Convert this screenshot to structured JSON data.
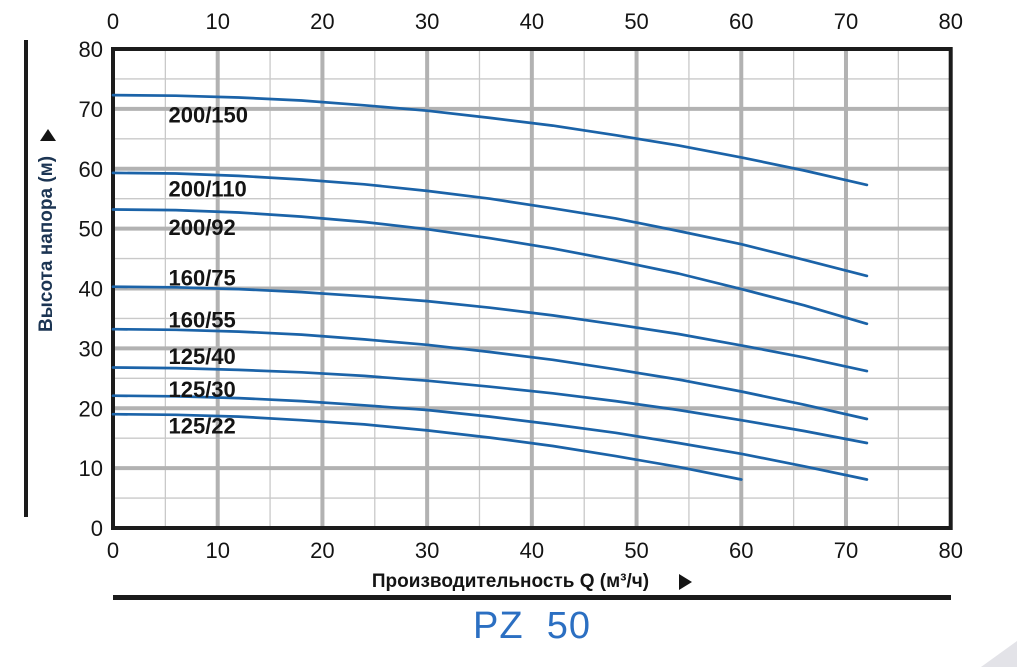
{
  "figure": {
    "y_axis_title": "Высота напора (м)",
    "x_axis_title": "Производительность Q (м³/ч)",
    "model_title": "PZ  50"
  },
  "chart_data": {
    "type": "line",
    "title": "PZ 50",
    "xlabel": "Производительность Q (м³/ч)",
    "ylabel": "Высота напора (м)",
    "xlim": [
      0,
      80
    ],
    "ylim": [
      0,
      80
    ],
    "x_ticks": [
      0,
      10,
      20,
      30,
      40,
      50,
      60,
      70,
      80
    ],
    "y_ticks": [
      0,
      10,
      20,
      30,
      40,
      50,
      60,
      70,
      80
    ],
    "grid": {
      "major_step": 10,
      "minor_step": 5,
      "on": true
    },
    "legend_position": "inline-labels-left",
    "colors": {
      "curve": "#1b63a8",
      "grid_major": "#b2b2b2",
      "grid_minor": "#c9c9c9",
      "axis": "#1b1b1b",
      "text": "#141414",
      "title_blue": "#2b6fc2"
    },
    "series": [
      {
        "name": "200/150",
        "label_x": 5.3,
        "label_y": 69.1,
        "points": [
          [
            0,
            72.3
          ],
          [
            6,
            72.2
          ],
          [
            12,
            71.9
          ],
          [
            18,
            71.4
          ],
          [
            24,
            70.6
          ],
          [
            30,
            69.7
          ],
          [
            36,
            68.5
          ],
          [
            42,
            67.2
          ],
          [
            48,
            65.6
          ],
          [
            54,
            63.9
          ],
          [
            60,
            61.9
          ],
          [
            66,
            59.7
          ],
          [
            72,
            57.3
          ]
        ]
      },
      {
        "name": "200/110",
        "label_x": 5.3,
        "label_y": 56.7,
        "points": [
          [
            0,
            59.3
          ],
          [
            6,
            59.2
          ],
          [
            12,
            58.8
          ],
          [
            18,
            58.2
          ],
          [
            24,
            57.4
          ],
          [
            30,
            56.3
          ],
          [
            36,
            55.0
          ],
          [
            42,
            53.4
          ],
          [
            48,
            51.7
          ],
          [
            54,
            49.6
          ],
          [
            60,
            47.4
          ],
          [
            66,
            44.8
          ],
          [
            72,
            42.1
          ]
        ]
      },
      {
        "name": "200/92",
        "label_x": 5.3,
        "label_y": 50.3,
        "points": [
          [
            0,
            53.2
          ],
          [
            6,
            53.1
          ],
          [
            12,
            52.7
          ],
          [
            18,
            52.0
          ],
          [
            24,
            51.1
          ],
          [
            30,
            49.9
          ],
          [
            36,
            48.4
          ],
          [
            42,
            46.7
          ],
          [
            48,
            44.7
          ],
          [
            54,
            42.5
          ],
          [
            60,
            39.9
          ],
          [
            66,
            37.2
          ],
          [
            72,
            34.1
          ]
        ]
      },
      {
        "name": "160/75",
        "label_x": 5.3,
        "label_y": 41.8,
        "points": [
          [
            0,
            40.3
          ],
          [
            6,
            40.2
          ],
          [
            12,
            39.9
          ],
          [
            18,
            39.4
          ],
          [
            24,
            38.7
          ],
          [
            30,
            37.9
          ],
          [
            36,
            36.8
          ],
          [
            42,
            35.5
          ],
          [
            48,
            34.0
          ],
          [
            54,
            32.4
          ],
          [
            60,
            30.5
          ],
          [
            66,
            28.5
          ],
          [
            72,
            26.2
          ]
        ]
      },
      {
        "name": "160/55",
        "label_x": 5.3,
        "label_y": 34.8,
        "points": [
          [
            0,
            33.2
          ],
          [
            6,
            33.1
          ],
          [
            12,
            32.8
          ],
          [
            18,
            32.3
          ],
          [
            24,
            31.5
          ],
          [
            30,
            30.6
          ],
          [
            36,
            29.4
          ],
          [
            42,
            28.1
          ],
          [
            48,
            26.5
          ],
          [
            54,
            24.8
          ],
          [
            60,
            22.8
          ],
          [
            66,
            20.6
          ],
          [
            72,
            18.2
          ]
        ]
      },
      {
        "name": "125/40",
        "label_x": 5.3,
        "label_y": 28.7,
        "points": [
          [
            0,
            26.8
          ],
          [
            6,
            26.7
          ],
          [
            12,
            26.4
          ],
          [
            18,
            26.0
          ],
          [
            24,
            25.4
          ],
          [
            30,
            24.6
          ],
          [
            36,
            23.6
          ],
          [
            42,
            22.5
          ],
          [
            48,
            21.2
          ],
          [
            54,
            19.7
          ],
          [
            60,
            18.0
          ],
          [
            66,
            16.2
          ],
          [
            72,
            14.2
          ]
        ]
      },
      {
        "name": "125/30",
        "label_x": 5.3,
        "label_y": 23.2,
        "points": [
          [
            0,
            22.1
          ],
          [
            6,
            22.0
          ],
          [
            12,
            21.7
          ],
          [
            18,
            21.2
          ],
          [
            24,
            20.5
          ],
          [
            30,
            19.7
          ],
          [
            36,
            18.6
          ],
          [
            42,
            17.3
          ],
          [
            48,
            15.9
          ],
          [
            54,
            14.2
          ],
          [
            60,
            12.4
          ],
          [
            66,
            10.3
          ],
          [
            72,
            8.1
          ]
        ]
      },
      {
        "name": "125/22",
        "label_x": 5.3,
        "label_y": 17.1,
        "points": [
          [
            0,
            19.0
          ],
          [
            6,
            18.9
          ],
          [
            12,
            18.6
          ],
          [
            18,
            18.0
          ],
          [
            24,
            17.3
          ],
          [
            30,
            16.3
          ],
          [
            36,
            15.1
          ],
          [
            42,
            13.7
          ],
          [
            48,
            12.0
          ],
          [
            54,
            10.2
          ],
          [
            60,
            8.1
          ]
        ]
      }
    ]
  }
}
